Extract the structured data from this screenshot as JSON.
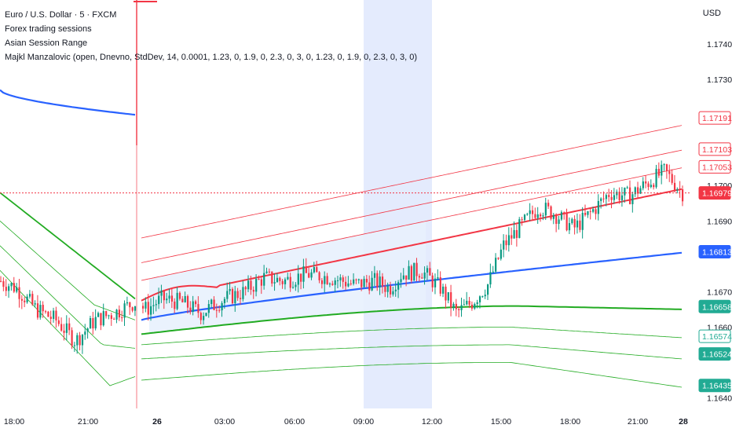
{
  "header": {
    "symbol_line": "Euro / U.S. Dollar · 5 · FXCM",
    "indicators": [
      "Forex trading sessions",
      "Asian Session Range",
      "Majkl Manzalovic (open, Dnevno, StdDev, 14, 0.0001, 1.23, 0, 1.9, 0, 2.3, 0, 3, 0, 1.23, 0, 1.9, 0, 2.3, 0, 3, 0)"
    ],
    "currency": "USD"
  },
  "chart_data": {
    "type": "candlestick",
    "y_axis": {
      "range": [
        1.1637,
        1.1748
      ],
      "ticks": [
        "1.17400",
        "1.17300",
        "1.17000",
        "1.16900",
        "1.16700",
        "1.16600",
        "1.16400"
      ],
      "tick_values": [
        1.174,
        1.173,
        1.17,
        1.169,
        1.167,
        1.166,
        1.164
      ]
    },
    "x_axis": {
      "ticks": [
        "18:00",
        "21:00",
        "26",
        "03:00",
        "06:00",
        "09:00",
        "12:00",
        "15:00",
        "18:00",
        "21:00",
        "28"
      ],
      "bold_ticks": [
        "26",
        "28"
      ]
    },
    "price_tags": [
      {
        "label": "1.17191",
        "value": 1.17191,
        "color": "#f23645",
        "style": "outline"
      },
      {
        "label": "1.17103",
        "value": 1.17103,
        "color": "#f23645",
        "style": "outline"
      },
      {
        "label": "1.17053",
        "value": 1.17053,
        "color": "#f23645",
        "style": "outline"
      },
      {
        "label": "1.16979",
        "value": 1.16979,
        "color": "#f23645",
        "style": "filled"
      },
      {
        "label": "1.16813",
        "value": 1.16813,
        "color": "#2962ff",
        "style": "filled"
      },
      {
        "label": "1.16658",
        "value": 1.16658,
        "color": "#22ab94",
        "style": "filled"
      },
      {
        "label": "1.16574",
        "value": 1.16574,
        "color": "#22ab94",
        "style": "outline"
      },
      {
        "label": "1.16524",
        "value": 1.16524,
        "color": "#22ab94",
        "style": "filled"
      },
      {
        "label": "1.16435",
        "value": 1.16435,
        "color": "#22ab94",
        "style": "filled"
      }
    ],
    "last_price": 1.16979,
    "colors": {
      "up": "#089981",
      "down": "#f23645",
      "vwap": "#2962ff",
      "upper_band": "#f23645",
      "lower_band": "#22ab22",
      "session_highlight": "#dfe8fd",
      "range_fill": "#e8f1fd"
    }
  }
}
